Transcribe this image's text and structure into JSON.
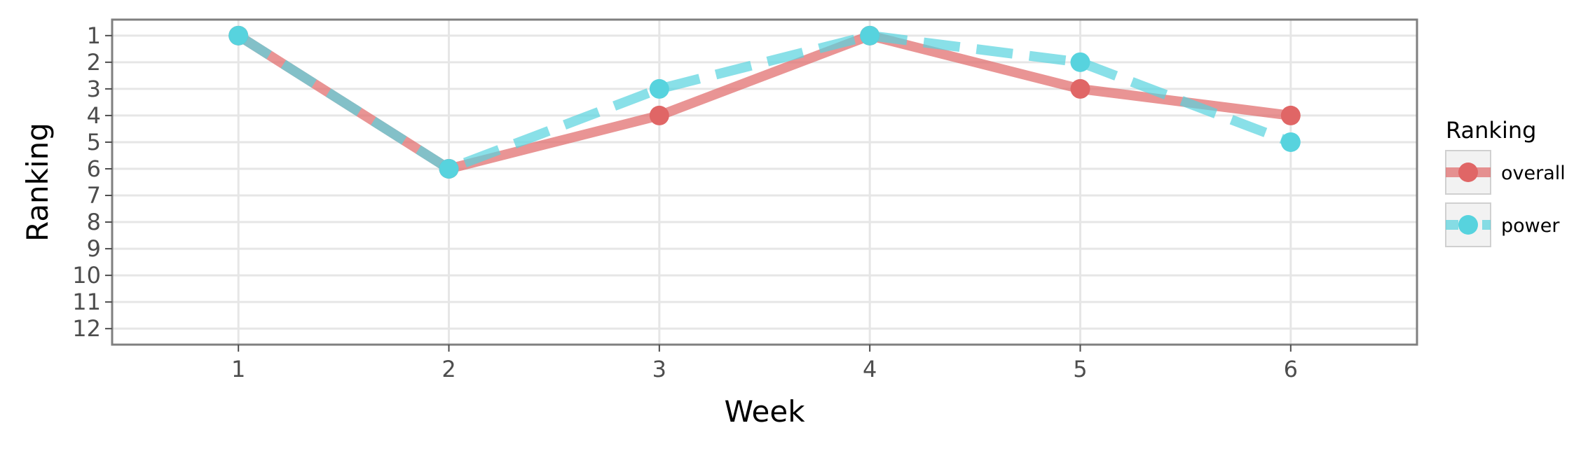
{
  "chart_data": {
    "type": "line",
    "title": "",
    "xlabel": "Week",
    "ylabel": "Ranking",
    "x": [
      1,
      2,
      3,
      4,
      5,
      6
    ],
    "xlim": [
      0.4,
      6.6
    ],
    "ylim": [
      12.6,
      0.4
    ],
    "y_reversed": true,
    "y_ticks": [
      1,
      2,
      3,
      4,
      5,
      6,
      7,
      8,
      9,
      10,
      11,
      12
    ],
    "grid": true,
    "legend": {
      "title": "Ranking",
      "position": "right"
    },
    "series": [
      {
        "name": "overall",
        "values": [
          1,
          6,
          4,
          1,
          3,
          4
        ],
        "color": "#e06666",
        "line_style": "solid"
      },
      {
        "name": "power",
        "values": [
          1,
          6,
          3,
          1,
          2,
          5
        ],
        "color": "#57d3de",
        "line_style": "dashed"
      }
    ]
  }
}
